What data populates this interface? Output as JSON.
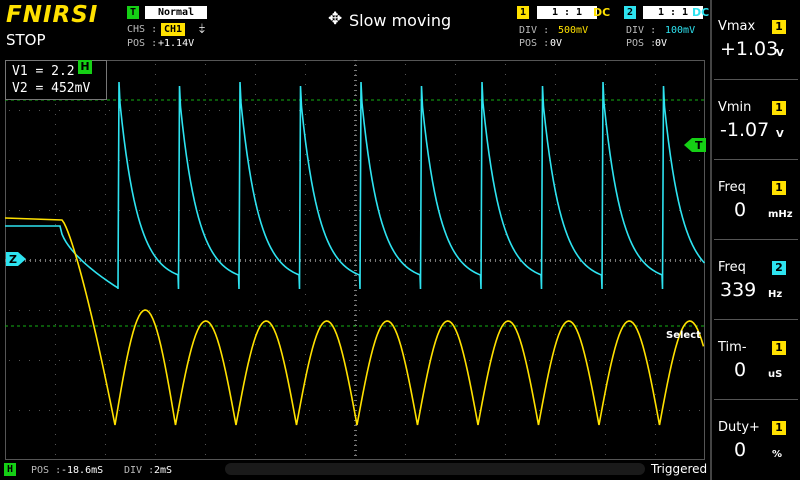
{
  "header": {
    "brand": "FNIRSI",
    "run_state": "STOP",
    "trigger": {
      "badge": "T",
      "mode": "Normal",
      "chs_label": "CHS :",
      "chs_value": "CH1",
      "pos_label": "POS :",
      "pos_value": "+1.14V"
    },
    "center_message": "Slow moving",
    "ch1": {
      "num": "1",
      "ratio": "1 : 1",
      "coupling": "DC",
      "div_label": "DIV :",
      "div_value": "500mV",
      "pos_label": "POS :",
      "pos_value": "0V",
      "color": "#ffe100"
    },
    "ch2": {
      "num": "2",
      "ratio": "1 : 1",
      "coupling": "DC",
      "div_label": "DIV :",
      "div_value": "100mV",
      "pos_label": "POS :",
      "pos_value": "0V",
      "color": "#2ee3f0"
    }
  },
  "cursor": {
    "v1": "V1 = 2.2",
    "v2": "V2 = 452mV",
    "marker": "H"
  },
  "markers": {
    "trigger": "T",
    "ch2": "Z",
    "select": "Select"
  },
  "measurements": [
    {
      "title": "Vmax",
      "ch": "1",
      "value": "+1.03",
      "unit": "V"
    },
    {
      "title": "Vmin",
      "ch": "1",
      "value": "-1.07",
      "unit": "V"
    },
    {
      "title": "Freq",
      "ch": "1",
      "value": "0",
      "unit": "mHz"
    },
    {
      "title": "Freq",
      "ch": "2",
      "value": "339",
      "unit": "Hz"
    },
    {
      "title": "Tim-",
      "ch": "1",
      "value": "0",
      "unit": "uS"
    },
    {
      "title": "Duty+",
      "ch": "1",
      "value": "0",
      "unit": "%"
    }
  ],
  "footer": {
    "h_badge": "H",
    "pos_label": "POS :",
    "pos_value": "-18.6mS",
    "div_label": "DIV :",
    "div_value": "2mS",
    "status": "Triggered"
  }
}
